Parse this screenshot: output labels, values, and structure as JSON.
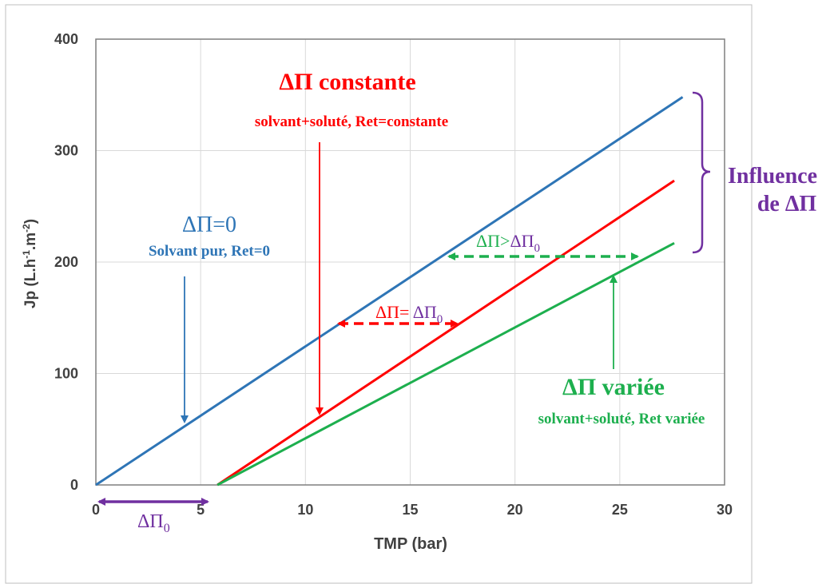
{
  "chart_data": {
    "type": "line",
    "xlabel": "TMP (bar)",
    "ylabel_parts": {
      "base": "Jp (L.h",
      "exp1": "-1",
      "mid": ".m",
      "exp2": "-2",
      "end": ")"
    },
    "xlim": [
      0,
      30
    ],
    "ylim": [
      0,
      400
    ],
    "xticks": [
      0,
      5,
      10,
      15,
      20,
      25,
      30
    ],
    "yticks": [
      0,
      100,
      200,
      300,
      400
    ],
    "grid": true,
    "series": [
      {
        "key": "blue",
        "color": "#2E75B6",
        "x": [
          0,
          28
        ],
        "y": [
          0,
          348
        ]
      },
      {
        "key": "red",
        "color": "#FF0000",
        "x": [
          5.8,
          27.6
        ],
        "y": [
          0,
          273
        ]
      },
      {
        "key": "green",
        "color": "#1DAF4E",
        "x": [
          5.8,
          27.6
        ],
        "y": [
          0,
          217
        ]
      }
    ],
    "annotations": {
      "blue_title": "ΔΠ=0",
      "blue_sub": "Solvant pur, Ret=0",
      "red_title": "ΔΠ constante",
      "red_sub": "solvant+soluté, Ret=constante",
      "green_title": "ΔΠ variée",
      "green_sub": "solvant+soluté, Ret variée",
      "red_arrow_label": "ΔΠ= ",
      "red_arrow_label_sym": "ΔΠ",
      "red_arrow_label_sub": "0",
      "green_arrow_label": "ΔΠ>",
      "green_arrow_label_sym": "ΔΠ",
      "green_arrow_label_sub": "0",
      "bottom_label": "ΔΠ",
      "bottom_label_sub": "0",
      "influence_line1": "Influence",
      "influence_line2": "de ΔΠ"
    },
    "colors": {
      "blue": "#2E75B6",
      "red": "#FF0000",
      "green": "#1DAF4E",
      "purple": "#7030A0",
      "axis": "#7f7f7f",
      "grid": "#d9d9d9"
    }
  }
}
